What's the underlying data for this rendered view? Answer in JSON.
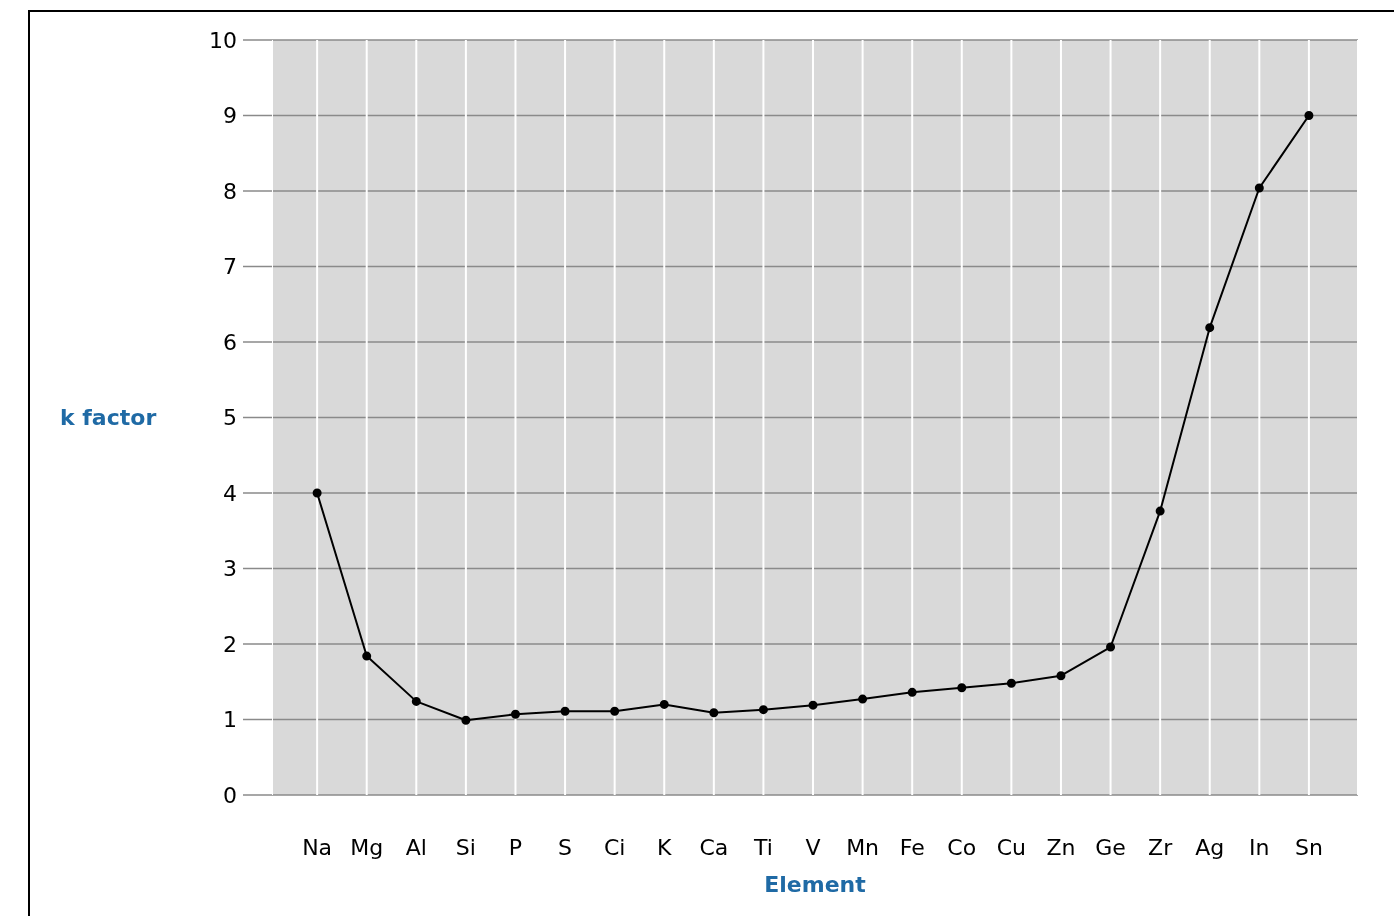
{
  "chart_data": {
    "type": "line",
    "xlabel": "Element",
    "ylabel": "k factor",
    "categories": [
      "Na",
      "Mg",
      "Al",
      "Si",
      "P",
      "S",
      "Ci",
      "K",
      "Ca",
      "Ti",
      "V",
      "Mn",
      "Fe",
      "Co",
      "Cu",
      "Zn",
      "Ge",
      "Zr",
      "Ag",
      "In",
      "Sn"
    ],
    "series": [
      {
        "color": "#000000",
        "values": [
          4.0,
          1.84,
          1.24,
          0.99,
          1.07,
          1.11,
          1.11,
          1.2,
          1.09,
          1.13,
          1.19,
          1.27,
          1.36,
          1.42,
          1.48,
          1.58,
          1.96,
          3.76,
          6.19,
          8.04,
          9.0
        ]
      }
    ],
    "ylim": [
      0,
      10
    ],
    "yticks": [
      0,
      1,
      2,
      3,
      4,
      5,
      6,
      7,
      8,
      9,
      10
    ],
    "grid": true,
    "marker": "circle",
    "line_style": "solid",
    "legend": false
  }
}
